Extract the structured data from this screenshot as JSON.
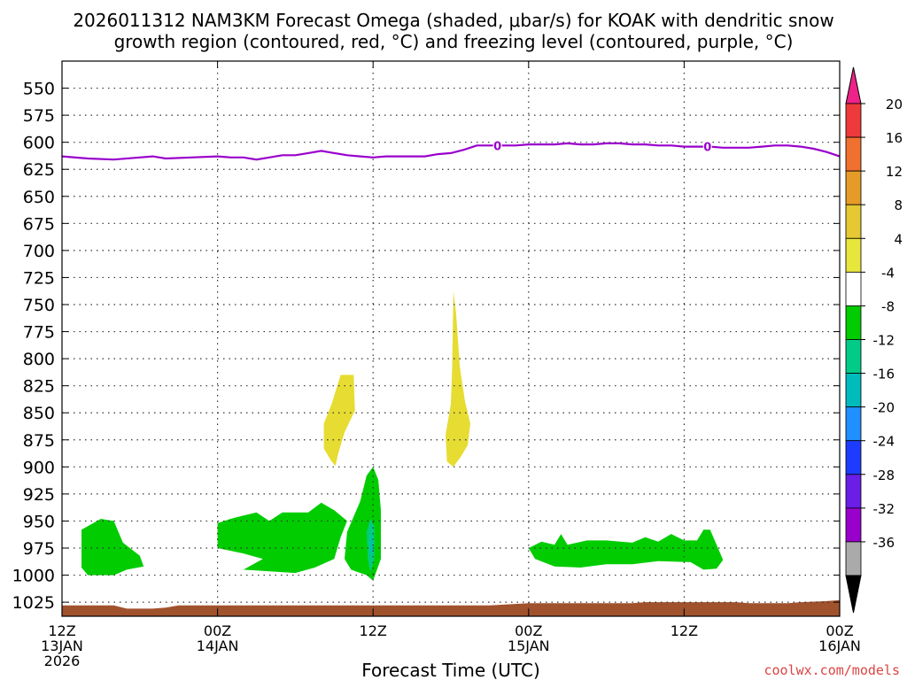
{
  "chart_data": {
    "type": "contour",
    "title_line1": "2026011312 NAM3KM Forecast Omega (shaded, μbar/s) for KOAK with dendritic snow",
    "title_line2": "growth region (contoured, red, °C) and freezing level (contoured, purple, °C)",
    "xlabel": "Forecast Time (UTC)",
    "ylabel": "",
    "y_range": [
      525,
      1038
    ],
    "x_range_hours": [
      0,
      60
    ],
    "y_ticks": [
      "550",
      "575",
      "600",
      "625",
      "650",
      "675",
      "700",
      "725",
      "750",
      "775",
      "800",
      "825",
      "850",
      "875",
      "900",
      "925",
      "950",
      "975",
      "1000",
      "1025"
    ],
    "x_ticks": [
      {
        "hour": 0,
        "l1": "12Z",
        "l2": "13JAN",
        "l3": "2026"
      },
      {
        "hour": 12,
        "l1": "00Z",
        "l2": "14JAN",
        "l3": ""
      },
      {
        "hour": 24,
        "l1": "12Z",
        "l2": "",
        "l3": ""
      },
      {
        "hour": 36,
        "l1": "00Z",
        "l2": "15JAN",
        "l3": ""
      },
      {
        "hour": 48,
        "l1": "12Z",
        "l2": "",
        "l3": ""
      },
      {
        "hour": 60,
        "l1": "00Z",
        "l2": "16JAN",
        "l3": ""
      }
    ],
    "freezing_level": {
      "color": "#9900cc",
      "label": "0",
      "label_hours": [
        33.6,
        49.8
      ],
      "points": [
        [
          0,
          613
        ],
        [
          2,
          615
        ],
        [
          4,
          616
        ],
        [
          6,
          614
        ],
        [
          7,
          613
        ],
        [
          8,
          615
        ],
        [
          10,
          614
        ],
        [
          12,
          613
        ],
        [
          13,
          614
        ],
        [
          14,
          614
        ],
        [
          15,
          616
        ],
        [
          16,
          614
        ],
        [
          17,
          612
        ],
        [
          18,
          612
        ],
        [
          19,
          610
        ],
        [
          20,
          608
        ],
        [
          21,
          610
        ],
        [
          22,
          612
        ],
        [
          23,
          613
        ],
        [
          24,
          614
        ],
        [
          25,
          613
        ],
        [
          26,
          613
        ],
        [
          27,
          613
        ],
        [
          28,
          613
        ],
        [
          29,
          611
        ],
        [
          30,
          610
        ],
        [
          31,
          607
        ],
        [
          32,
          603
        ],
        [
          33,
          603
        ],
        [
          34,
          603
        ],
        [
          35,
          603
        ],
        [
          36,
          602
        ],
        [
          37,
          602
        ],
        [
          38,
          602
        ],
        [
          39,
          601
        ],
        [
          40,
          602
        ],
        [
          41,
          602
        ],
        [
          42,
          601
        ],
        [
          43,
          601
        ],
        [
          44,
          602
        ],
        [
          45,
          602
        ],
        [
          46,
          603
        ],
        [
          47,
          603
        ],
        [
          48,
          604
        ],
        [
          49,
          604
        ],
        [
          50,
          604
        ],
        [
          51,
          605
        ],
        [
          52,
          605
        ],
        [
          53,
          605
        ],
        [
          54,
          604
        ],
        [
          55,
          603
        ],
        [
          56,
          603
        ],
        [
          57,
          604
        ],
        [
          58,
          606
        ],
        [
          59,
          609
        ],
        [
          60,
          613
        ]
      ]
    },
    "omega_regions": [
      {
        "name": "upward-weak-1",
        "level": "-8 to -4",
        "color": "#00cc00",
        "points": [
          [
            1.5,
            958
          ],
          [
            3,
            948
          ],
          [
            4,
            950
          ],
          [
            4.7,
            970
          ],
          [
            6,
            982
          ],
          [
            6.3,
            992
          ],
          [
            5,
            995
          ],
          [
            4,
            1000
          ],
          [
            2,
            1000
          ],
          [
            1.5,
            993
          ]
        ]
      },
      {
        "name": "upward-weak-2",
        "level": "-8 to -4",
        "color": "#00cc00",
        "points": [
          [
            12,
            952
          ],
          [
            13,
            948
          ],
          [
            14,
            945
          ],
          [
            15,
            942
          ],
          [
            16,
            950
          ],
          [
            17,
            942
          ],
          [
            19,
            942
          ],
          [
            20,
            933
          ],
          [
            21,
            940
          ],
          [
            22,
            950
          ],
          [
            21.5,
            965
          ],
          [
            21,
            985
          ],
          [
            19.5,
            993
          ],
          [
            18,
            998
          ],
          [
            14,
            995
          ],
          [
            15.5,
            985
          ],
          [
            14,
            980
          ],
          [
            12,
            975
          ]
        ]
      },
      {
        "name": "upward-weak-3",
        "level": "-8 to -4",
        "color": "#00cc00",
        "points": [
          [
            24,
            900
          ],
          [
            24.4,
            912
          ],
          [
            24.6,
            940
          ],
          [
            24.6,
            985
          ],
          [
            24,
            1005
          ],
          [
            23.5,
            1000
          ],
          [
            22.3,
            995
          ],
          [
            21.8,
            985
          ],
          [
            22,
            960
          ],
          [
            23,
            932
          ],
          [
            23.5,
            908
          ]
        ]
      },
      {
        "name": "upward-moderate-1",
        "level": "-12 to -8",
        "color": "#00cc80",
        "points": [
          [
            23.8,
            948
          ],
          [
            24.1,
            955
          ],
          [
            24.1,
            985
          ],
          [
            23.8,
            997
          ],
          [
            23.6,
            985
          ],
          [
            23.5,
            960
          ]
        ]
      },
      {
        "name": "upward-strong-1",
        "level": "-16 to -12",
        "color": "#00bbbb",
        "points": [
          [
            23.8,
            962
          ],
          [
            24,
            970
          ],
          [
            23.9,
            983
          ],
          [
            23.8,
            978
          ]
        ]
      },
      {
        "name": "upward-weak-4",
        "level": "-8 to -4",
        "color": "#00cc00",
        "points": [
          [
            36,
            975
          ],
          [
            37,
            969
          ],
          [
            38,
            972
          ],
          [
            38.5,
            962
          ],
          [
            39,
            972
          ],
          [
            40.5,
            968
          ],
          [
            42,
            968
          ],
          [
            44,
            970
          ],
          [
            45,
            965
          ],
          [
            46,
            969
          ],
          [
            47,
            962
          ],
          [
            48,
            968
          ],
          [
            49,
            968
          ],
          [
            49.5,
            958
          ],
          [
            50,
            958
          ],
          [
            50.5,
            972
          ],
          [
            51,
            986
          ],
          [
            50.5,
            994
          ],
          [
            49.5,
            995
          ],
          [
            48.5,
            988
          ],
          [
            46,
            987
          ],
          [
            44,
            990
          ],
          [
            42,
            990
          ],
          [
            40,
            993
          ],
          [
            38,
            992
          ],
          [
            36.5,
            985
          ]
        ]
      },
      {
        "name": "downward-weak-1",
        "level": "4 to 8",
        "color": "#e6dc32",
        "points": [
          [
            21.5,
            815
          ],
          [
            22.5,
            815
          ],
          [
            22.6,
            848
          ],
          [
            21.8,
            868
          ],
          [
            21.3,
            888
          ],
          [
            21.1,
            899
          ],
          [
            20.8,
            895
          ],
          [
            20.2,
            883
          ],
          [
            20.2,
            860
          ],
          [
            20.8,
            842
          ]
        ]
      },
      {
        "name": "downward-weak-2",
        "level": "4 to 8",
        "color": "#e6dc32",
        "points": [
          [
            30.2,
            738
          ],
          [
            30.4,
            758
          ],
          [
            30.7,
            808
          ],
          [
            31.1,
            840
          ],
          [
            31.5,
            860
          ],
          [
            31.3,
            880
          ],
          [
            30.8,
            890
          ],
          [
            30.2,
            900
          ],
          [
            29.7,
            895
          ],
          [
            29.6,
            870
          ],
          [
            30.0,
            842
          ],
          [
            30.1,
            808
          ]
        ]
      }
    ],
    "terrain": {
      "color": "#a0522d",
      "points": [
        [
          0,
          1028
        ],
        [
          4,
          1028
        ],
        [
          5,
          1031
        ],
        [
          7,
          1031
        ],
        [
          8,
          1030
        ],
        [
          9,
          1028
        ],
        [
          33,
          1028
        ],
        [
          36,
          1026
        ],
        [
          38,
          1026
        ],
        [
          44,
          1026
        ],
        [
          45,
          1025
        ],
        [
          52,
          1025
        ],
        [
          53,
          1026
        ],
        [
          56,
          1026
        ],
        [
          57,
          1025
        ],
        [
          59,
          1024
        ],
        [
          60,
          1023
        ]
      ]
    },
    "colorbar": {
      "levels": [
        "20",
        "16",
        "12",
        "8",
        "4",
        "-4",
        "-8",
        "-12",
        "-16",
        "-20",
        "-24",
        "-28",
        "-32",
        "-36"
      ],
      "top_triangle_color": "#ee2288",
      "bottom_triangle_color": "#000000",
      "segment_colors": [
        "#ee3a3a",
        "#f07030",
        "#e69b28",
        "#e6c832",
        "#e6e63c",
        "#ffffff",
        "#00cc00",
        "#00cc88",
        "#00bbbb",
        "#1e90ff",
        "#1e3cff",
        "#6a1ee6",
        "#9900cc",
        "#aaaaaa"
      ]
    }
  },
  "credit": "coolwx.com/models"
}
